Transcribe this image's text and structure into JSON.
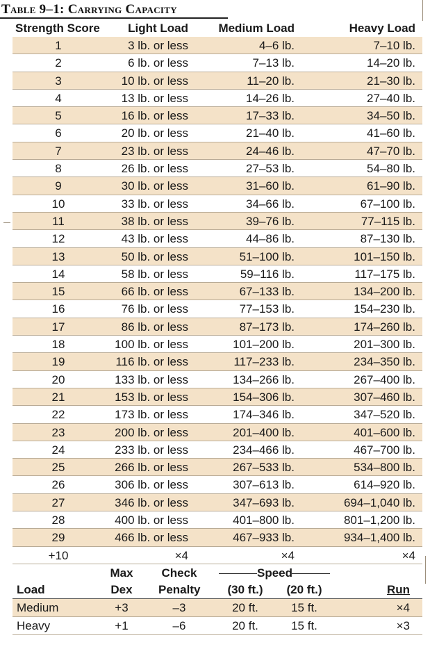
{
  "table": {
    "title": "Table 9–1: Carrying Capacity",
    "headers": [
      "Strength Score",
      "Light Load",
      "Medium Load",
      "Heavy Load"
    ],
    "rows": [
      [
        "1",
        "3 lb. or less",
        "4–6 lb.",
        "7–10 lb."
      ],
      [
        "2",
        "6 lb. or less",
        "7–13 lb.",
        "14–20 lb."
      ],
      [
        "3",
        "10 lb. or less",
        "11–20 lb.",
        "21–30 lb."
      ],
      [
        "4",
        "13 lb. or less",
        "14–26 lb.",
        "27–40 lb."
      ],
      [
        "5",
        "16 lb. or less",
        "17–33 lb.",
        "34–50 lb."
      ],
      [
        "6",
        "20 lb. or less",
        "21–40 lb.",
        "41–60 lb."
      ],
      [
        "7",
        "23 lb. or less",
        "24–46 lb.",
        "47–70 lb."
      ],
      [
        "8",
        "26 lb. or less",
        "27–53 lb.",
        "54–80 lb."
      ],
      [
        "9",
        "30 lb. or less",
        "31–60 lb.",
        "61–90 lb."
      ],
      [
        "10",
        "33 lb. or less",
        "34–66 lb.",
        "67–100 lb."
      ],
      [
        "11",
        "38 lb. or less",
        "39–76 lb.",
        "77–115 lb."
      ],
      [
        "12",
        "43 lb. or less",
        "44–86 lb.",
        "87–130 lb."
      ],
      [
        "13",
        "50 lb. or less",
        "51–100 lb.",
        "101–150 lb."
      ],
      [
        "14",
        "58 lb. or less",
        "59–116 lb.",
        "117–175 lb."
      ],
      [
        "15",
        "66 lb. or less",
        "67–133 lb.",
        "134–200 lb."
      ],
      [
        "16",
        "76 lb. or less",
        "77–153 lb.",
        "154–230 lb."
      ],
      [
        "17",
        "86 lb. or less",
        "87–173 lb.",
        "174–260 lb."
      ],
      [
        "18",
        "100 lb. or less",
        "101–200 lb.",
        "201–300 lb."
      ],
      [
        "19",
        "116 lb. or less",
        "117–233 lb.",
        "234–350 lb."
      ],
      [
        "20",
        "133 lb. or less",
        "134–266 lb.",
        "267–400 lb."
      ],
      [
        "21",
        "153 lb. or less",
        "154–306 lb.",
        "307–460 lb."
      ],
      [
        "22",
        "173 lb. or less",
        "174–346 lb.",
        "347–520 lb."
      ],
      [
        "23",
        "200 lb. or less",
        "201–400 lb.",
        "401–600 lb."
      ],
      [
        "24",
        "233 lb. or less",
        "234–466 lb.",
        "467–700 lb."
      ],
      [
        "25",
        "266 lb. or less",
        "267–533 lb.",
        "534–800 lb."
      ],
      [
        "26",
        "306 lb. or less",
        "307–613 lb.",
        "614–920 lb."
      ],
      [
        "27",
        "346 lb. or less",
        "347–693 lb.",
        "694–1,040 lb."
      ],
      [
        "28",
        "400 lb. or less",
        "401–800 lb.",
        "801–1,200 lb."
      ],
      [
        "29",
        "466 lb. or less",
        "467–933 lb.",
        "934–1,400 lb."
      ],
      [
        "+10",
        "×4",
        "×4",
        "×4"
      ]
    ]
  },
  "penalties": {
    "top_headers": {
      "max": "Max",
      "check": "Check",
      "speed": "Speed"
    },
    "headers": [
      "Load",
      "Dex",
      "Penalty",
      "(30 ft.)",
      "(20 ft.)",
      "Run"
    ],
    "rows": [
      [
        "Medium",
        "+3",
        "–3",
        "20 ft.",
        "15 ft.",
        "×4"
      ],
      [
        "Heavy",
        "+1",
        "–6",
        "20 ft.",
        "15 ft.",
        "×3"
      ]
    ]
  },
  "colors": {
    "row_shade": "#f4e2c8",
    "row_rule": "#b9ab96"
  }
}
